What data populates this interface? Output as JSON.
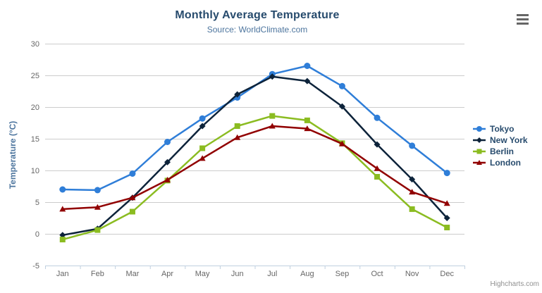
{
  "chart": {
    "title": "Monthly Average Temperature",
    "subtitle": "Source: WorldClimate.com",
    "y_axis_title": "Temperature (°C)",
    "credits": "Highcharts.com",
    "background_color": "#ffffff",
    "title_color": "#274b6d",
    "subtitle_color": "#4d759e",
    "axis_label_color": "#666666",
    "grid_color": "#cccccc",
    "axis_line_color": "#c0d0e0"
  },
  "chart_data": {
    "type": "line",
    "title": "Monthly Average Temperature",
    "subtitle": "Source: WorldClimate.com",
    "xlabel": "",
    "ylabel": "Temperature (°C)",
    "ylim": [
      -5,
      30
    ],
    "y_ticks": [
      -5,
      0,
      5,
      10,
      15,
      20,
      25,
      30
    ],
    "grid": true,
    "legend_position": "right",
    "categories": [
      "Jan",
      "Feb",
      "Mar",
      "Apr",
      "May",
      "Jun",
      "Jul",
      "Aug",
      "Sep",
      "Oct",
      "Nov",
      "Dec"
    ],
    "series": [
      {
        "name": "Tokyo",
        "color": "#2f7ed8",
        "marker": "circle",
        "values": [
          7.0,
          6.9,
          9.5,
          14.5,
          18.2,
          21.5,
          25.2,
          26.5,
          23.3,
          18.3,
          13.9,
          9.6
        ]
      },
      {
        "name": "New York",
        "color": "#0d233a",
        "marker": "diamond",
        "values": [
          -0.2,
          0.8,
          5.7,
          11.3,
          17.0,
          22.0,
          24.8,
          24.1,
          20.1,
          14.1,
          8.6,
          2.5
        ]
      },
      {
        "name": "Berlin",
        "color": "#8bbc21",
        "marker": "square",
        "values": [
          -0.9,
          0.6,
          3.5,
          8.4,
          13.5,
          17.0,
          18.6,
          17.9,
          14.3,
          9.0,
          3.9,
          1.0
        ]
      },
      {
        "name": "London",
        "color": "#910000",
        "marker": "triangle",
        "values": [
          3.9,
          4.2,
          5.7,
          8.5,
          11.9,
          15.2,
          17.0,
          16.6,
          14.2,
          10.3,
          6.6,
          4.8
        ]
      }
    ]
  }
}
